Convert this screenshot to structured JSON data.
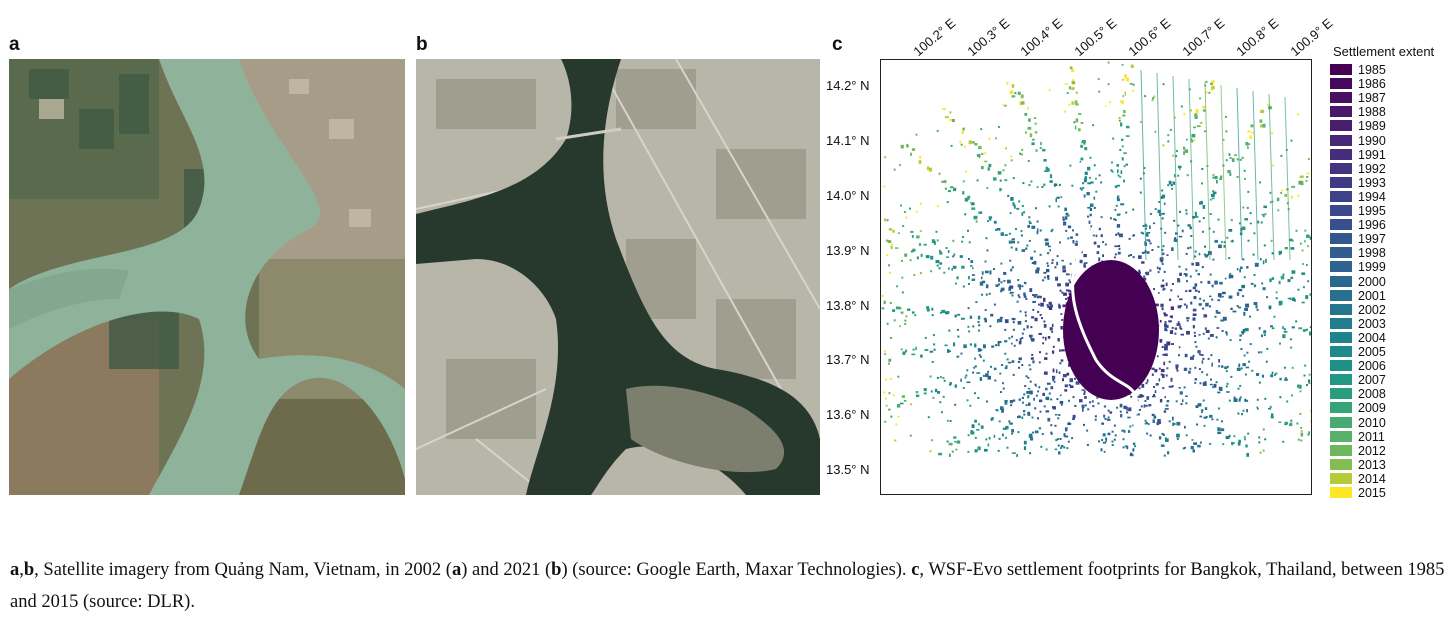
{
  "panels": {
    "a_label": "a",
    "b_label": "b",
    "c_label": "c"
  },
  "map_c": {
    "x_ticks": [
      "100.2° E",
      "100.3° E",
      "100.4° E",
      "100.5° E",
      "100.6° E",
      "100.7° E",
      "100.8° E",
      "100.9° E"
    ],
    "y_ticks": [
      "14.2° N",
      "14.1° N",
      "14.0° N",
      "13.9° N",
      "13.8° N",
      "13.7° N",
      "13.6° N",
      "13.5° N"
    ],
    "legend_title": "Settlement extent",
    "legend_years": [
      "1985",
      "1986",
      "1987",
      "1988",
      "1989",
      "1990",
      "1991",
      "1992",
      "1993",
      "1994",
      "1995",
      "1996",
      "1997",
      "1998",
      "1999",
      "2000",
      "2001",
      "2002",
      "2003",
      "2004",
      "2005",
      "2006",
      "2007",
      "2008",
      "2009",
      "2010",
      "2011",
      "2012",
      "2013",
      "2014",
      "2015"
    ],
    "legend_colors": [
      "#440154",
      "#46085c",
      "#471063",
      "#481769",
      "#481e6f",
      "#472676",
      "#462d7b",
      "#44337f",
      "#413a84",
      "#3e4189",
      "#3b488b",
      "#374f8c",
      "#33568d",
      "#305c8e",
      "#2d638e",
      "#2a698e",
      "#27708e",
      "#24768e",
      "#217d8d",
      "#1f838c",
      "#1e8a8a",
      "#1f9087",
      "#239784",
      "#2b9d7f",
      "#36a479",
      "#46ab71",
      "#58b168",
      "#6cb75e",
      "#82bc53",
      "#b5cb3a",
      "#fde725"
    ]
  },
  "caption": {
    "a": "a",
    "comma": ",",
    "b": "b",
    "text1": ", Satellite imagery from Quảng Nam, Vietnam, in 2002 (",
    "text2": ") and 2021 (",
    "text3": ") (source: Google Earth, Maxar Technologies). ",
    "c": "c",
    "text4": ", WSF-Evo settlement footprints for Bangkok, Thailand, between 1985 and 2015 (source: DLR)."
  }
}
